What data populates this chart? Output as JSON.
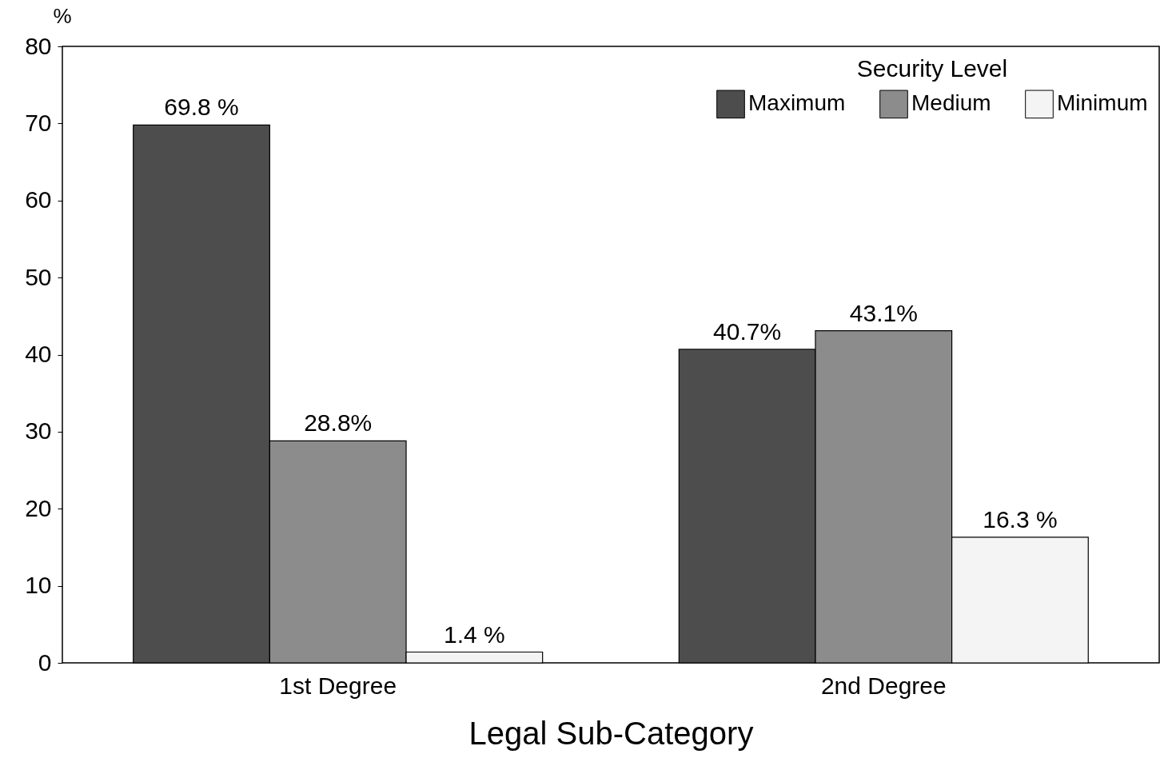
{
  "chart_data": {
    "type": "bar",
    "xlabel": "Legal Sub-Category",
    "ylabel": "%",
    "legend_title": "Security Level",
    "legend": "top right",
    "categories": [
      "1st Degree",
      "2nd Degree"
    ],
    "series": [
      {
        "name": "Maximum",
        "color": "#4d4d4d",
        "values": [
          69.8,
          40.7
        ],
        "value_labels": [
          "69.8 %",
          "40.7%"
        ]
      },
      {
        "name": "Medium",
        "color": "#8c8c8c",
        "values": [
          28.8,
          43.1
        ],
        "value_labels": [
          "28.8%",
          "43.1%"
        ]
      },
      {
        "name": "Minimum",
        "color": "#f4f4f4",
        "values": [
          1.4,
          16.3
        ],
        "value_labels": [
          "1.4 %",
          "16.3 %"
        ]
      }
    ],
    "ylim": [
      0,
      80
    ],
    "yticks": [
      0,
      10,
      20,
      30,
      40,
      50,
      60,
      70,
      80
    ]
  }
}
